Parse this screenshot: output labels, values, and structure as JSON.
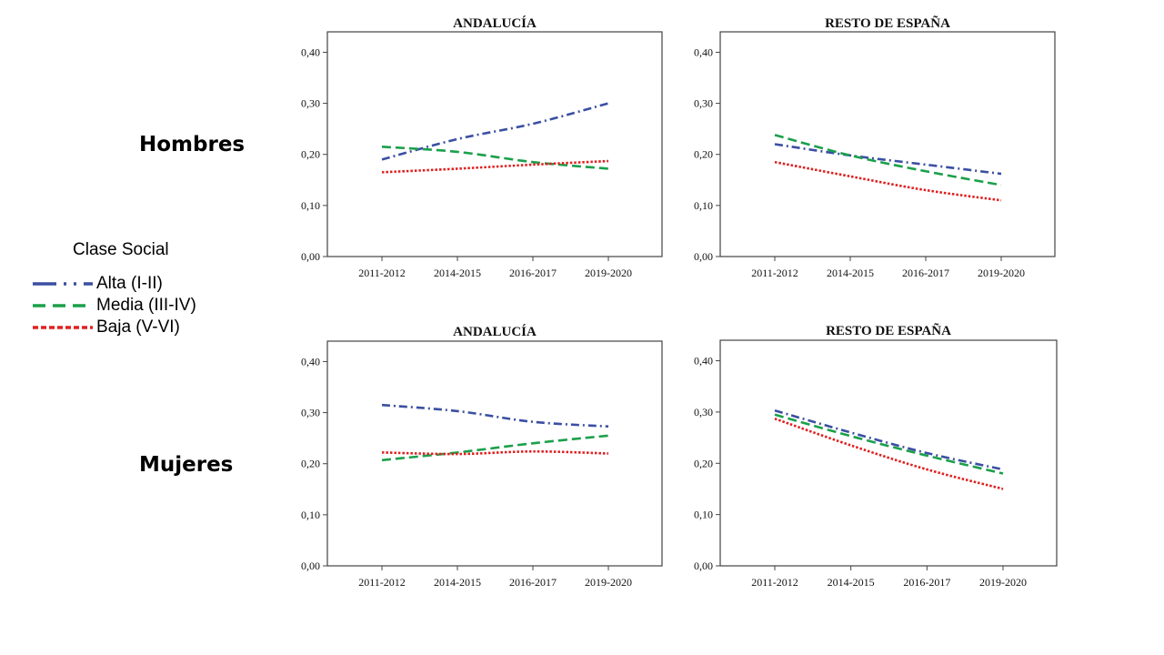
{
  "row_labels": {
    "top": "Hombres",
    "bottom": "Mujeres"
  },
  "legend": {
    "title": "Clase Social",
    "items": [
      {
        "label": "Alta (I-II)",
        "color": "#3b4fa3",
        "style": "dash-dot"
      },
      {
        "label": "Media (III-IV)",
        "color": "#1aa04a",
        "style": "dashed"
      },
      {
        "label": "Baja (V-VI)",
        "color": "#e02020",
        "style": "dotted"
      }
    ]
  },
  "chart_data": [
    {
      "type": "line",
      "panel": "Hombres",
      "title": "ANDALUCÍA",
      "categories": [
        "2011-2012",
        "2014-2015",
        "2016-2017",
        "2019-2020"
      ],
      "yticks": [
        "0,00",
        "0,10",
        "0,20",
        "0,30",
        "0,40"
      ],
      "ylim": [
        0,
        0.44
      ],
      "series": [
        {
          "name": "Alta (I-II)",
          "values": [
            0.19,
            0.23,
            0.26,
            0.3
          ]
        },
        {
          "name": "Media (III-IV)",
          "values": [
            0.215,
            0.205,
            0.185,
            0.172
          ]
        },
        {
          "name": "Baja (V-VI)",
          "values": [
            0.165,
            0.172,
            0.18,
            0.187
          ]
        }
      ]
    },
    {
      "type": "line",
      "panel": "Hombres",
      "title": "RESTO DE ESPAÑA",
      "categories": [
        "2011-2012",
        "2014-2015",
        "2016-2017",
        "2019-2020"
      ],
      "yticks": [
        "0,00",
        "0,10",
        "0,20",
        "0,30",
        "0,40"
      ],
      "ylim": [
        0,
        0.44
      ],
      "series": [
        {
          "name": "Alta (I-II)",
          "values": [
            0.22,
            0.198,
            0.18,
            0.162
          ]
        },
        {
          "name": "Media (III-IV)",
          "values": [
            0.238,
            0.198,
            0.167,
            0.14
          ]
        },
        {
          "name": "Baja (V-VI)",
          "values": [
            0.185,
            0.157,
            0.13,
            0.11
          ]
        }
      ]
    },
    {
      "type": "line",
      "panel": "Mujeres",
      "title": "ANDALUCÍA",
      "categories": [
        "2011-2012",
        "2014-2015",
        "2016-2017",
        "2019-2020"
      ],
      "yticks": [
        "0,00",
        "0,10",
        "0,20",
        "0,30",
        "0,40"
      ],
      "ylim": [
        0,
        0.44
      ],
      "series": [
        {
          "name": "Alta (I-II)",
          "values": [
            0.315,
            0.303,
            0.282,
            0.273
          ]
        },
        {
          "name": "Media (III-IV)",
          "values": [
            0.207,
            0.222,
            0.24,
            0.255
          ]
        },
        {
          "name": "Baja (V-VI)",
          "values": [
            0.222,
            0.219,
            0.224,
            0.22
          ]
        }
      ]
    },
    {
      "type": "line",
      "panel": "Mujeres",
      "title": "RESTO DE ESPAÑA",
      "categories": [
        "2011-2012",
        "2014-2015",
        "2016-2017",
        "2019-2020"
      ],
      "yticks": [
        "0,00",
        "0,10",
        "0,20",
        "0,30",
        "0,40"
      ],
      "ylim": [
        0,
        0.44
      ],
      "series": [
        {
          "name": "Alta (I-II)",
          "values": [
            0.303,
            0.26,
            0.22,
            0.188
          ]
        },
        {
          "name": "Media (III-IV)",
          "values": [
            0.295,
            0.253,
            0.215,
            0.18
          ]
        },
        {
          "name": "Baja (V-VI)",
          "values": [
            0.287,
            0.235,
            0.188,
            0.15
          ]
        }
      ]
    }
  ]
}
